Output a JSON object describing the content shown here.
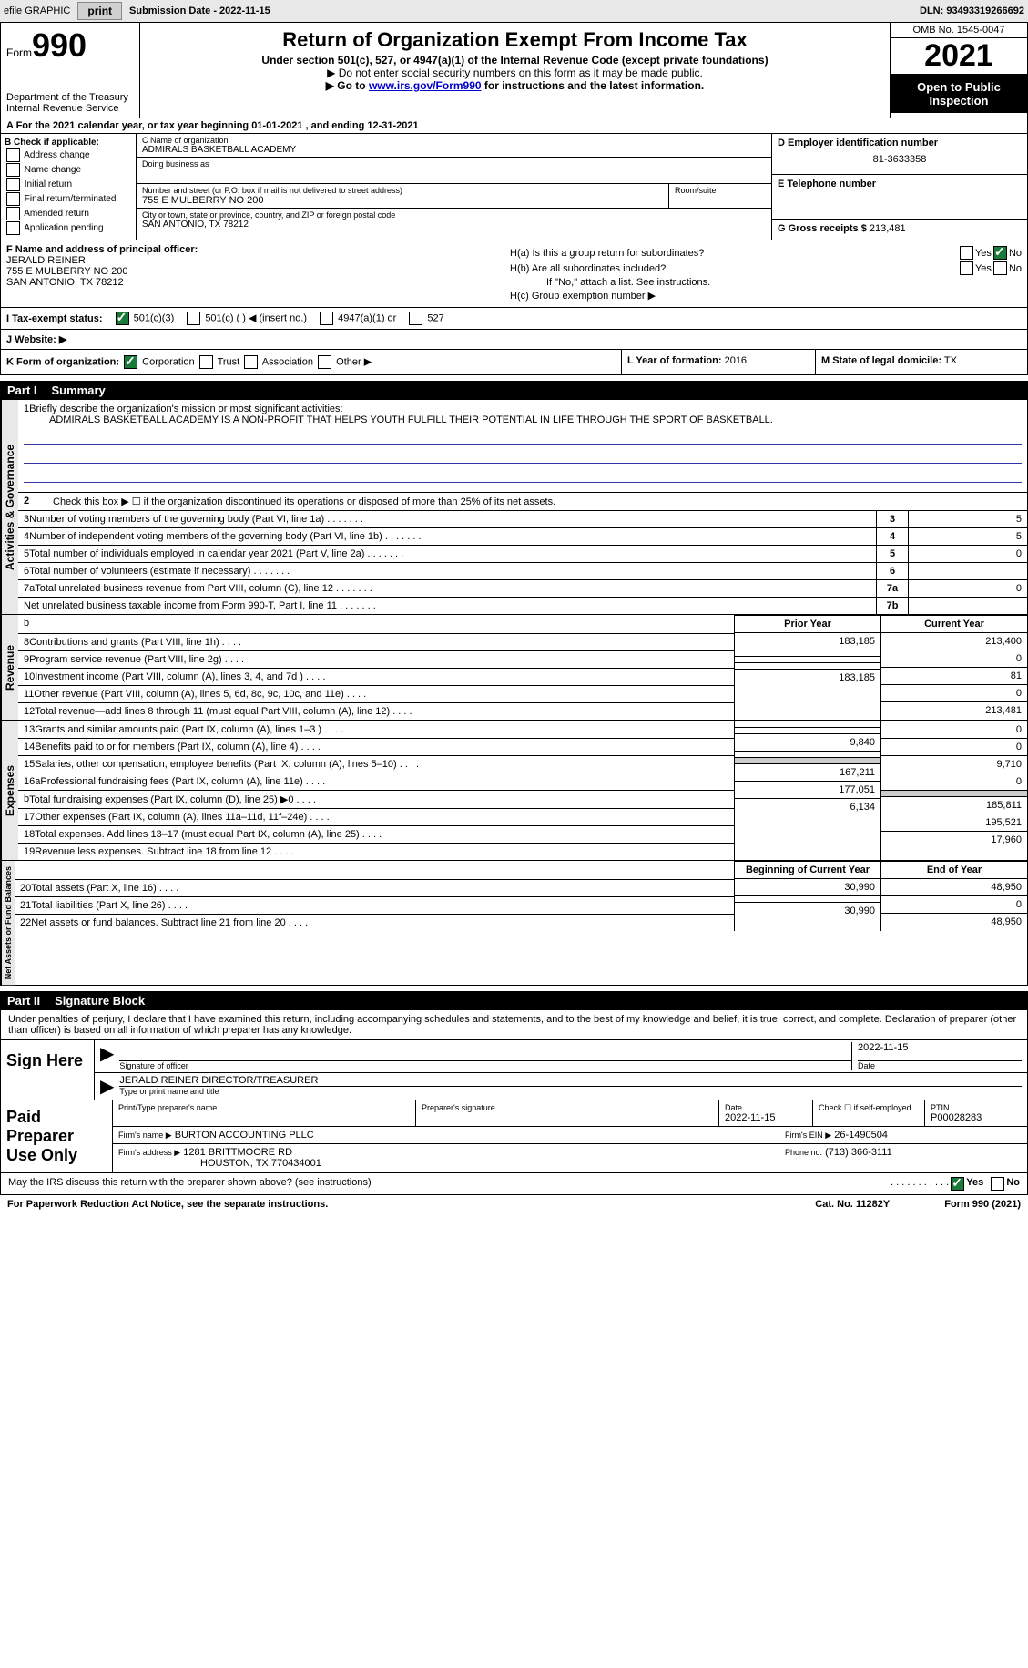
{
  "topbar": {
    "efile_label": "efile GRAPHIC",
    "print_btn": "print",
    "sub_date_label": "Submission Date - 2022-11-15",
    "dln": "DLN: 93493319266692"
  },
  "header": {
    "form_word": "Form",
    "form_num": "990",
    "dept": "Department of the Treasury",
    "irs": "Internal Revenue Service",
    "title": "Return of Organization Exempt From Income Tax",
    "sub1": "Under section 501(c), 527, or 4947(a)(1) of the Internal Revenue Code (except private foundations)",
    "sub2": "▶ Do not enter social security numbers on this form as it may be made public.",
    "sub3_pre": "▶ Go to ",
    "sub3_link": "www.irs.gov/Form990",
    "sub3_post": " for instructions and the latest information.",
    "omb": "OMB No. 1545-0047",
    "year": "2021",
    "otp": "Open to Public Inspection"
  },
  "period": {
    "text": "A For the 2021 calendar year, or tax year beginning 01-01-2021    , and ending 12-31-2021"
  },
  "box_b": {
    "hdr": "B Check if applicable:",
    "opts": [
      "Address change",
      "Name change",
      "Initial return",
      "Final return/terminated",
      "Amended return",
      "Application pending"
    ]
  },
  "box_c": {
    "name_lbl": "C Name of organization",
    "name_val": "ADMIRALS BASKETBALL ACADEMY",
    "dba_lbl": "Doing business as",
    "street_lbl": "Number and street (or P.O. box if mail is not delivered to street address)",
    "street_val": "755 E MULBERRY NO 200",
    "room_lbl": "Room/suite",
    "city_lbl": "City or town, state or province, country, and ZIP or foreign postal code",
    "city_val": "SAN ANTONIO, TX  78212"
  },
  "box_d": {
    "ein_lbl": "D Employer identification number",
    "ein_val": "81-3633358",
    "tel_lbl": "E Telephone number",
    "gross_lbl": "G Gross receipts $",
    "gross_val": "213,481"
  },
  "box_f": {
    "lbl": "F  Name and address of principal officer:",
    "name": "JERALD REINER",
    "addr1": "755 E MULBERRY NO 200",
    "addr2": "SAN ANTONIO, TX  78212"
  },
  "box_h": {
    "ha": "H(a)  Is this a group return for subordinates?",
    "hb": "H(b)  Are all subordinates included?",
    "hb_note": "If \"No,\" attach a list. See instructions.",
    "hc": "H(c)  Group exemption number ▶",
    "yes": "Yes",
    "no": "No"
  },
  "row_i": {
    "lbl": "I  Tax-exempt status:",
    "o1": "501(c)(3)",
    "o2": "501(c) (   ) ◀ (insert no.)",
    "o3": "4947(a)(1) or",
    "o4": "527"
  },
  "row_j": {
    "lbl": "J  Website: ▶"
  },
  "row_klm": {
    "k_lbl": "K Form of organization:",
    "k_opts": [
      "Corporation",
      "Trust",
      "Association",
      "Other ▶"
    ],
    "l_lbl": "L Year of formation:",
    "l_val": "2016",
    "m_lbl": "M State of legal domicile:",
    "m_val": "TX"
  },
  "part1": {
    "hdr_pn": "Part I",
    "hdr_title": "Summary",
    "line1_lbl": "Briefly describe the organization's mission or most significant activities:",
    "line1_val": "ADMIRALS BASKETBALL ACADEMY IS A NON-PROFIT THAT HELPS YOUTH FULFILL THEIR POTENTIAL IN LIFE THROUGH THE SPORT OF BASKETBALL.",
    "line2": "Check this box ▶ ☐ if the organization discontinued its operations or disposed of more than 25% of its net assets.",
    "rows_ag": [
      {
        "n": "3",
        "t": "Number of voting members of the governing body (Part VI, line 1a)",
        "c": "3",
        "v": "5"
      },
      {
        "n": "4",
        "t": "Number of independent voting members of the governing body (Part VI, line 1b)",
        "c": "4",
        "v": "5"
      },
      {
        "n": "5",
        "t": "Total number of individuals employed in calendar year 2021 (Part V, line 2a)",
        "c": "5",
        "v": "0"
      },
      {
        "n": "6",
        "t": "Total number of volunteers (estimate if necessary)",
        "c": "6",
        "v": ""
      },
      {
        "n": "7a",
        "t": "Total unrelated business revenue from Part VIII, column (C), line 12",
        "c": "7a",
        "v": "0"
      },
      {
        "n": "",
        "t": "Net unrelated business taxable income from Form 990-T, Part I, line 11",
        "c": "7b",
        "v": ""
      }
    ],
    "py_hdr": "Prior Year",
    "cy_hdr": "Current Year",
    "rev_rows": [
      {
        "n": "8",
        "t": "Contributions and grants (Part VIII, line 1h)",
        "py": "183,185",
        "cy": "213,400"
      },
      {
        "n": "9",
        "t": "Program service revenue (Part VIII, line 2g)",
        "py": "",
        "cy": "0"
      },
      {
        "n": "10",
        "t": "Investment income (Part VIII, column (A), lines 3, 4, and 7d )",
        "py": "",
        "cy": "81"
      },
      {
        "n": "11",
        "t": "Other revenue (Part VIII, column (A), lines 5, 6d, 8c, 9c, 10c, and 11e)",
        "py": "",
        "cy": "0"
      },
      {
        "n": "12",
        "t": "Total revenue—add lines 8 through 11 (must equal Part VIII, column (A), line 12)",
        "py": "183,185",
        "cy": "213,481"
      }
    ],
    "exp_rows": [
      {
        "n": "13",
        "t": "Grants and similar amounts paid (Part IX, column (A), lines 1–3 )",
        "py": "",
        "cy": "0"
      },
      {
        "n": "14",
        "t": "Benefits paid to or for members (Part IX, column (A), line 4)",
        "py": "",
        "cy": "0"
      },
      {
        "n": "15",
        "t": "Salaries, other compensation, employee benefits (Part IX, column (A), lines 5–10)",
        "py": "9,840",
        "cy": "9,710"
      },
      {
        "n": "16a",
        "t": "Professional fundraising fees (Part IX, column (A), line 11e)",
        "py": "",
        "cy": "0"
      },
      {
        "n": "b",
        "t": "Total fundraising expenses (Part IX, column (D), line 25) ▶0",
        "py": "shade",
        "cy": "shade"
      },
      {
        "n": "17",
        "t": "Other expenses (Part IX, column (A), lines 11a–11d, 11f–24e)",
        "py": "167,211",
        "cy": "185,811"
      },
      {
        "n": "18",
        "t": "Total expenses. Add lines 13–17 (must equal Part IX, column (A), line 25)",
        "py": "177,051",
        "cy": "195,521"
      },
      {
        "n": "19",
        "t": "Revenue less expenses. Subtract line 18 from line 12",
        "py": "6,134",
        "cy": "17,960"
      }
    ],
    "boy_hdr": "Beginning of Current Year",
    "eoy_hdr": "End of Year",
    "na_rows": [
      {
        "n": "20",
        "t": "Total assets (Part X, line 16)",
        "py": "30,990",
        "cy": "48,950"
      },
      {
        "n": "21",
        "t": "Total liabilities (Part X, line 26)",
        "py": "",
        "cy": "0"
      },
      {
        "n": "22",
        "t": "Net assets or fund balances. Subtract line 21 from line 20",
        "py": "30,990",
        "cy": "48,950"
      }
    ],
    "vtab_ag": "Activities & Governance",
    "vtab_rev": "Revenue",
    "vtab_exp": "Expenses",
    "vtab_na": "Net Assets or Fund Balances"
  },
  "part2": {
    "hdr_pn": "Part II",
    "hdr_title": "Signature Block",
    "decl": "Under penalties of perjury, I declare that I have examined this return, including accompanying schedules and statements, and to the best of my knowledge and belief, it is true, correct, and complete. Declaration of preparer (other than officer) is based on all information of which preparer has any knowledge.",
    "sign_here": "Sign Here",
    "sig_officer": "Signature of officer",
    "sig_date": "Date",
    "sig_date_val": "2022-11-15",
    "sig_name": "JERALD REINER  DIRECTOR/TREASURER",
    "sig_name_lbl": "Type or print name and title",
    "paid_hdr": "Paid Preparer Use Only",
    "prep_name_lbl": "Print/Type preparer's name",
    "prep_sig_lbl": "Preparer's signature",
    "prep_date_lbl": "Date",
    "prep_date_val": "2022-11-15",
    "prep_check_lbl": "Check ☐ if self-employed",
    "ptin_lbl": "PTIN",
    "ptin_val": "P00028283",
    "firm_name_lbl": "Firm's name    ▶",
    "firm_name_val": "BURTON ACCOUNTING PLLC",
    "firm_ein_lbl": "Firm's EIN ▶",
    "firm_ein_val": "26-1490504",
    "firm_addr_lbl": "Firm's address ▶",
    "firm_addr_val1": "1281 BRITTMOORE RD",
    "firm_addr_val2": "HOUSTON, TX  770434001",
    "phone_lbl": "Phone no.",
    "phone_val": "(713) 366-3111",
    "discuss": "May the IRS discuss this return with the preparer shown above? (see instructions)",
    "discuss_yes": "Yes",
    "discuss_no": "No"
  },
  "footer": {
    "pra": "For Paperwork Reduction Act Notice, see the separate instructions.",
    "cat": "Cat. No. 11282Y",
    "form": "Form 990 (2021)"
  }
}
